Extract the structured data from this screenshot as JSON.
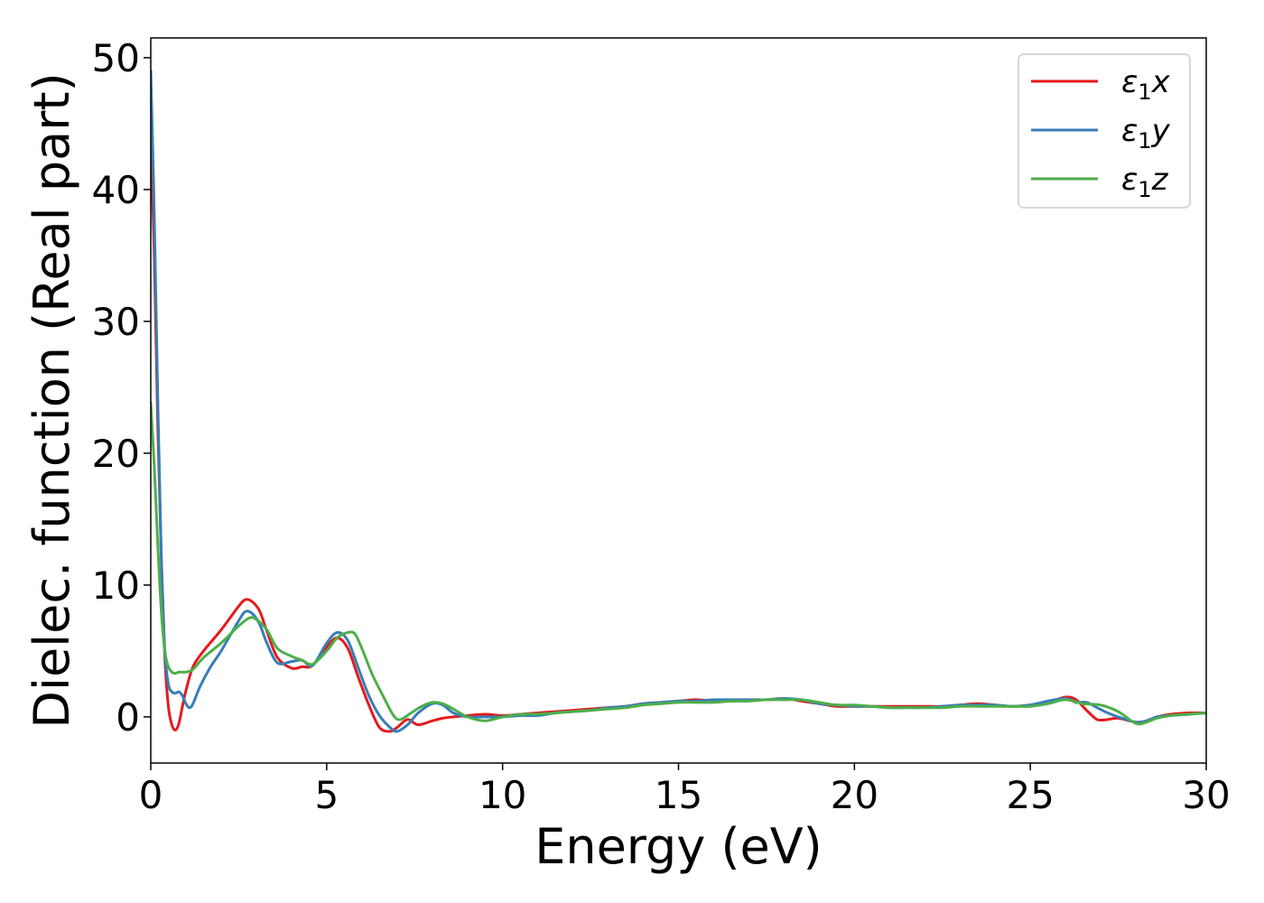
{
  "chart_data": {
    "type": "line",
    "title": "",
    "xlabel": "Energy (eV)",
    "ylabel": "Dielec. function (Real part)",
    "xlim": [
      0,
      30
    ],
    "ylim": [
      -3.5,
      51.5
    ],
    "xticks": [
      0,
      5,
      10,
      15,
      20,
      25,
      30
    ],
    "yticks": [
      0,
      10,
      20,
      30,
      40,
      50
    ],
    "grid": false,
    "legend_position": "top-right",
    "series": [
      {
        "name": "ε₁x",
        "legend_main": "ε",
        "legend_sub": "1",
        "legend_var": "x",
        "color": "#e41a1c",
        "x": [
          0,
          0.1,
          0.2,
          0.3,
          0.4,
          0.5,
          0.6,
          0.7,
          0.8,
          0.9,
          1.0,
          1.2,
          1.5,
          2.0,
          2.5,
          2.7,
          2.9,
          3.1,
          3.3,
          3.6,
          4.0,
          4.3,
          4.6,
          5.0,
          5.3,
          5.6,
          5.9,
          6.2,
          6.5,
          6.8,
          7.0,
          7.3,
          7.6,
          8.0,
          8.3,
          8.6,
          9.0,
          9.5,
          10.0,
          10.5,
          11.0,
          11.5,
          12.0,
          12.5,
          13.0,
          13.5,
          14.0,
          14.5,
          15.0,
          15.5,
          16.0,
          16.5,
          17.0,
          17.5,
          18.0,
          18.5,
          19.0,
          19.5,
          20.0,
          20.5,
          21.0,
          21.5,
          22.0,
          22.5,
          23.0,
          23.5,
          24.0,
          24.5,
          25.0,
          25.5,
          26.0,
          26.3,
          26.6,
          26.9,
          27.2,
          27.5,
          28.0,
          28.3,
          28.6,
          29.0,
          29.5,
          30.0
        ],
        "y": [
          44,
          35,
          22,
          12,
          4.5,
          0.8,
          -0.6,
          -1.0,
          -0.5,
          0.8,
          2.0,
          3.8,
          5.0,
          6.6,
          8.4,
          8.9,
          8.7,
          8.0,
          6.5,
          4.5,
          3.7,
          3.8,
          3.9,
          5.3,
          6.0,
          5.2,
          3.0,
          0.9,
          -0.8,
          -1.1,
          -0.8,
          -0.2,
          -0.6,
          -0.3,
          -0.1,
          0.0,
          0.1,
          0.2,
          0.1,
          0.2,
          0.3,
          0.4,
          0.5,
          0.6,
          0.7,
          0.8,
          1.0,
          1.1,
          1.2,
          1.3,
          1.2,
          1.2,
          1.3,
          1.3,
          1.4,
          1.2,
          1.0,
          0.8,
          0.8,
          0.8,
          0.8,
          0.8,
          0.8,
          0.8,
          0.9,
          1.0,
          0.9,
          0.8,
          0.9,
          1.1,
          1.5,
          1.3,
          0.5,
          -0.2,
          -0.2,
          -0.1,
          -0.4,
          -0.3,
          0.0,
          0.2,
          0.3,
          0.3
        ]
      },
      {
        "name": "ε₁y",
        "legend_main": "ε",
        "legend_sub": "1",
        "legend_var": "y",
        "color": "#377eb8",
        "x": [
          0,
          0.1,
          0.2,
          0.3,
          0.4,
          0.5,
          0.6,
          0.7,
          0.8,
          0.9,
          1.0,
          1.1,
          1.2,
          1.4,
          1.7,
          2.0,
          2.5,
          2.7,
          2.9,
          3.1,
          3.3,
          3.6,
          4.0,
          4.3,
          4.6,
          5.0,
          5.3,
          5.6,
          5.9,
          6.2,
          6.5,
          6.8,
          7.0,
          7.3,
          7.6,
          8.0,
          8.3,
          8.6,
          9.0,
          9.5,
          10.0,
          10.5,
          11.0,
          11.5,
          12.0,
          12.5,
          13.0,
          13.5,
          14.0,
          14.5,
          15.0,
          15.5,
          16.0,
          16.5,
          17.0,
          17.5,
          18.0,
          18.5,
          19.0,
          19.5,
          20.0,
          20.5,
          21.0,
          21.5,
          22.0,
          22.5,
          23.0,
          23.5,
          24.0,
          24.5,
          25.0,
          25.5,
          26.0,
          26.3,
          26.6,
          26.9,
          27.2,
          27.5,
          28.0,
          28.3,
          28.6,
          29.0,
          29.5,
          30.0
        ],
        "y": [
          49,
          38,
          24,
          12,
          5.0,
          2.5,
          1.9,
          1.8,
          1.9,
          1.6,
          1.0,
          0.7,
          1.0,
          2.3,
          3.8,
          5.0,
          7.3,
          8.0,
          7.8,
          7.0,
          5.6,
          4.1,
          4.2,
          4.3,
          3.9,
          5.6,
          6.4,
          5.8,
          3.7,
          1.6,
          0.1,
          -0.8,
          -1.1,
          -0.6,
          0.3,
          1.0,
          0.9,
          0.3,
          0.0,
          0.0,
          0.0,
          0.1,
          0.1,
          0.3,
          0.4,
          0.5,
          0.7,
          0.8,
          1.0,
          1.1,
          1.2,
          1.2,
          1.3,
          1.3,
          1.3,
          1.3,
          1.4,
          1.3,
          1.0,
          0.9,
          0.8,
          0.8,
          0.7,
          0.7,
          0.7,
          0.8,
          0.9,
          0.9,
          0.9,
          0.8,
          0.9,
          1.2,
          1.4,
          1.1,
          1.1,
          0.7,
          0.3,
          0.0,
          -0.4,
          -0.3,
          0.0,
          0.1,
          0.2,
          0.3
        ]
      },
      {
        "name": "ε₁z",
        "legend_main": "ε",
        "legend_sub": "1",
        "legend_var": "z",
        "color": "#4daf4a",
        "x": [
          0,
          0.1,
          0.2,
          0.3,
          0.4,
          0.5,
          0.6,
          0.7,
          0.8,
          1.0,
          1.2,
          1.5,
          2.0,
          2.5,
          2.8,
          3.0,
          3.3,
          3.6,
          4.0,
          4.3,
          4.6,
          5.0,
          5.3,
          5.6,
          5.8,
          6.0,
          6.3,
          6.6,
          6.9,
          7.1,
          7.4,
          7.7,
          8.0,
          8.3,
          8.6,
          9.0,
          9.5,
          10.0,
          10.5,
          11.0,
          11.5,
          12.0,
          12.5,
          13.0,
          13.5,
          14.0,
          14.5,
          15.0,
          15.5,
          16.0,
          16.5,
          17.0,
          17.5,
          18.0,
          18.5,
          19.0,
          19.5,
          20.0,
          20.5,
          21.0,
          21.5,
          22.0,
          22.5,
          23.0,
          23.5,
          24.0,
          24.5,
          25.0,
          25.5,
          26.0,
          26.5,
          27.0,
          27.5,
          28.0,
          28.3,
          28.6,
          29.0,
          29.5,
          30.0
        ],
        "y": [
          23.8,
          19,
          13,
          8,
          5.0,
          3.8,
          3.4,
          3.3,
          3.4,
          3.4,
          3.6,
          4.5,
          5.6,
          6.9,
          7.5,
          7.4,
          6.6,
          5.2,
          4.6,
          4.3,
          4.0,
          5.0,
          6.0,
          6.4,
          6.3,
          5.2,
          3.2,
          1.6,
          0.1,
          -0.2,
          0.3,
          0.8,
          1.1,
          1.0,
          0.6,
          0.0,
          -0.3,
          0.0,
          0.2,
          0.2,
          0.3,
          0.4,
          0.5,
          0.6,
          0.7,
          0.9,
          1.0,
          1.1,
          1.1,
          1.1,
          1.2,
          1.2,
          1.3,
          1.3,
          1.3,
          1.1,
          0.9,
          0.9,
          0.8,
          0.7,
          0.7,
          0.7,
          0.7,
          0.8,
          0.8,
          0.8,
          0.8,
          0.8,
          1.0,
          1.3,
          1.0,
          0.9,
          0.4,
          -0.5,
          -0.4,
          -0.1,
          0.1,
          0.2,
          0.3
        ]
      }
    ]
  }
}
